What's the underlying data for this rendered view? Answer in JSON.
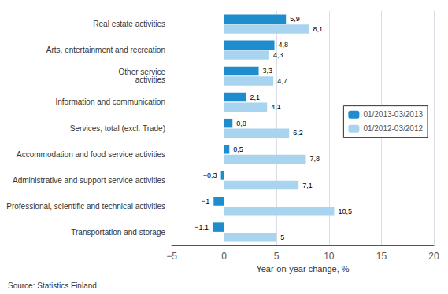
{
  "chart_data": {
    "type": "bar",
    "orientation": "horizontal",
    "categories": [
      "Transportation and storage",
      "Professional, scientific and technical activities",
      "Administrative and support service activities",
      "Accommodation and food service activities",
      "Services, total (excl. Trade)",
      "Information and communication",
      "Other service\nactivities",
      "Arts, entertainment and recreation",
      "Real estate activities"
    ],
    "series": [
      {
        "name": "01/2013-03/2013",
        "color": "#1f8dcd",
        "values": [
          -1.1,
          -1.0,
          -0.3,
          0.5,
          0.8,
          2.1,
          3.3,
          4.8,
          5.9
        ],
        "value_labels": [
          "−1,1",
          "−1",
          "−0,3",
          "0,5",
          "0,8",
          "2,1",
          "3,3",
          "4,8",
          "5,9"
        ]
      },
      {
        "name": "01/2012-03/2012",
        "color": "#a8d4f0",
        "values": [
          5.0,
          10.5,
          7.1,
          7.8,
          6.2,
          4.1,
          4.7,
          4.3,
          8.1
        ],
        "value_labels": [
          "5",
          "10,5",
          "7,1",
          "7,8",
          "6,2",
          "4,1",
          "4,7",
          "4,3",
          "8,1"
        ]
      }
    ],
    "xlabel": "Year-on-year change, %",
    "xlim": [
      -5,
      20
    ],
    "xticks": [
      {
        "value": -5,
        "label": "−5"
      },
      0,
      5,
      10,
      15,
      20
    ],
    "grid": true,
    "legend": "right",
    "data_labels": true,
    "annotation": "Source: Statistics Finland"
  }
}
